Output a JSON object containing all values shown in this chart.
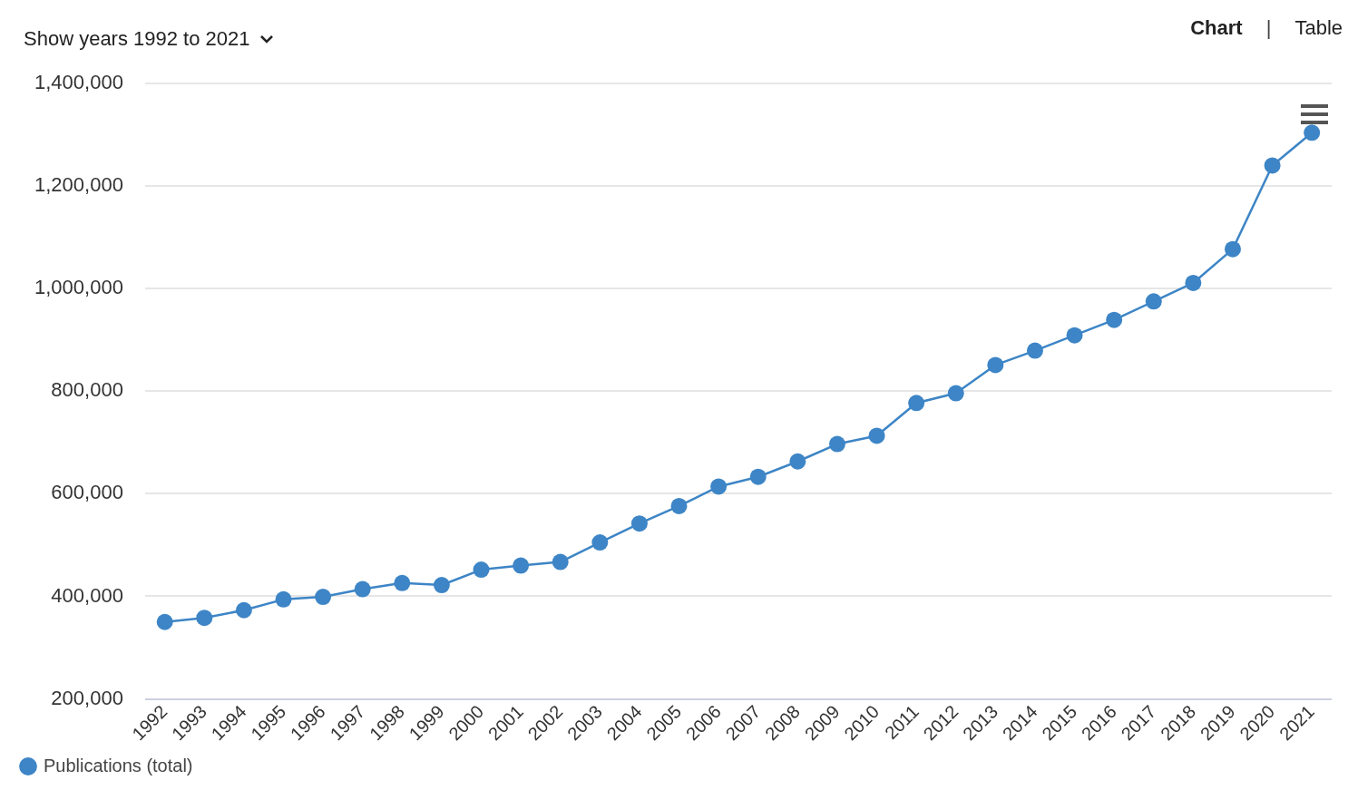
{
  "chart_data": {
    "type": "line",
    "categories": [
      "1992",
      "1993",
      "1994",
      "1995",
      "1996",
      "1997",
      "1998",
      "1999",
      "2000",
      "2001",
      "2002",
      "2003",
      "2004",
      "2005",
      "2006",
      "2007",
      "2008",
      "2009",
      "2010",
      "2011",
      "2012",
      "2013",
      "2014",
      "2015",
      "2016",
      "2017",
      "2018",
      "2019",
      "2020",
      "2021"
    ],
    "series": [
      {
        "name": "Publications (total)",
        "color": "#3d85c6",
        "values": [
          350000,
          358000,
          373000,
          394000,
          399000,
          414000,
          426000,
          422000,
          452000,
          460000,
          467000,
          505000,
          542000,
          576000,
          614000,
          633000,
          663000,
          697000,
          713000,
          777000,
          796000,
          851000,
          879000,
          909000,
          939000,
          975000,
          1011000,
          1077000,
          1240000,
          1304000
        ]
      }
    ],
    "ylim": [
      200000,
      1400000
    ],
    "yticks": [
      {
        "value": 200000,
        "label": "200,000"
      },
      {
        "value": 400000,
        "label": "400,000"
      },
      {
        "value": 600000,
        "label": "600,000"
      },
      {
        "value": 800000,
        "label": "800,000"
      },
      {
        "value": 1000000,
        "label": "1,000,000"
      },
      {
        "value": 1200000,
        "label": "1,200,000"
      },
      {
        "value": 1400000,
        "label": "1,400,000"
      }
    ],
    "grid": "y",
    "legend": "bottom left",
    "marker": "circle",
    "line_style": "solid",
    "annotations": [
      "Show years 1992 to 2021",
      "Chart",
      "|",
      "Table"
    ]
  }
}
